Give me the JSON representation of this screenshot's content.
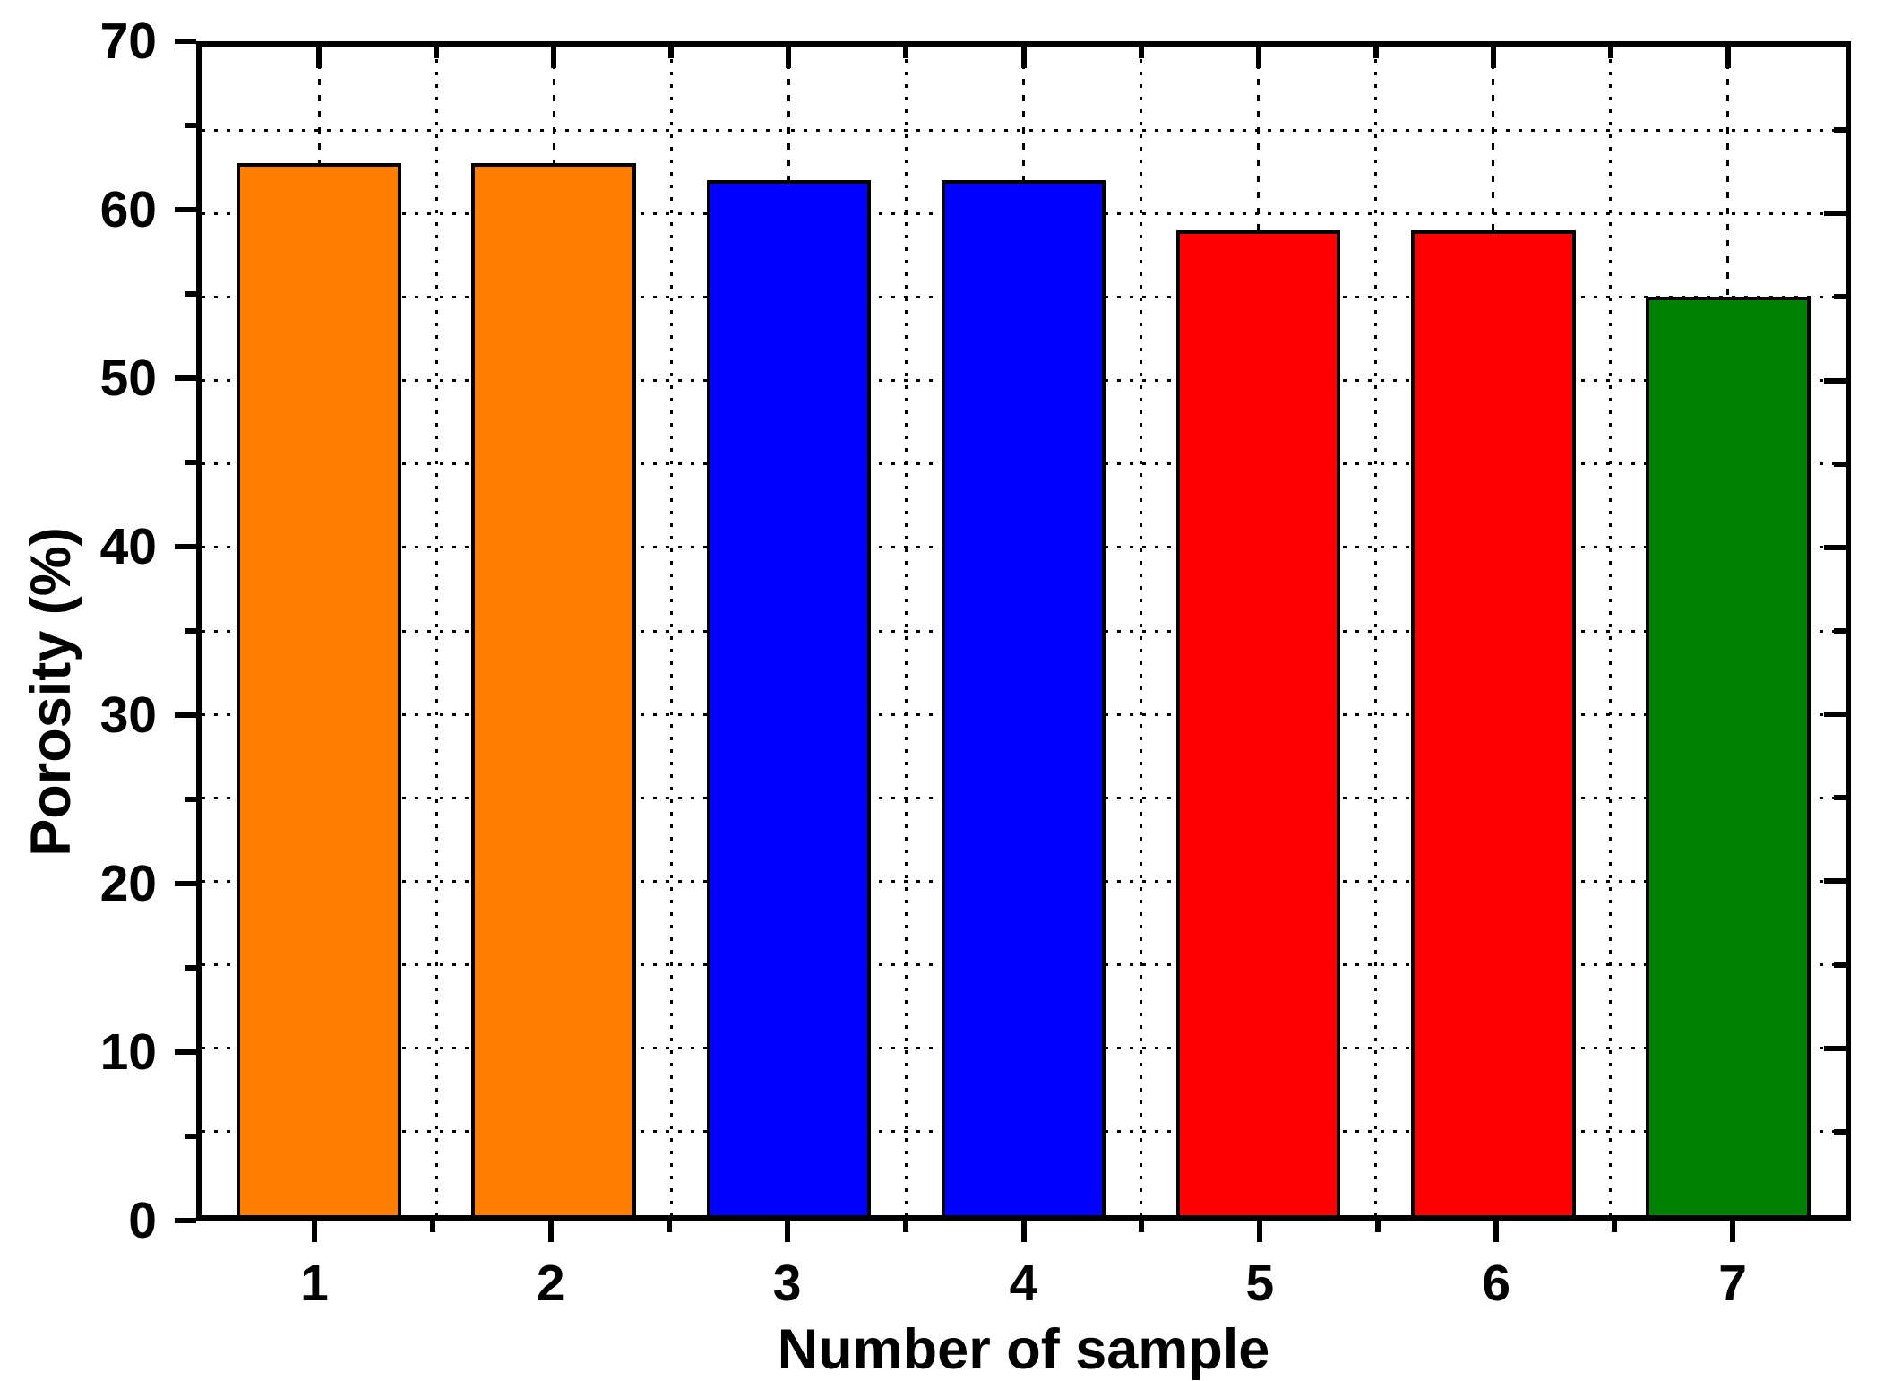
{
  "chart_data": {
    "type": "bar",
    "title": "",
    "xlabel": "Number of sample",
    "ylabel": "Porosity (%)",
    "categories": [
      "1",
      "2",
      "3",
      "4",
      "5",
      "6",
      "7"
    ],
    "values": [
      63,
      63,
      62,
      62,
      59,
      59,
      55
    ],
    "bar_colors": [
      "#FF8000",
      "#FF8000",
      "#0000FF",
      "#0000FF",
      "#FF0000",
      "#FF0000",
      "#008000"
    ],
    "bar_border_color": "#000000",
    "bar_width_fraction": 0.7,
    "xlim": [
      0.5,
      7.5
    ],
    "ylim": [
      0,
      70
    ],
    "y_major_ticks": [
      0,
      10,
      20,
      30,
      40,
      50,
      60,
      70
    ],
    "y_minor_ticks": [
      5,
      15,
      25,
      35,
      45,
      55,
      65
    ],
    "x_major_ticks": [
      1,
      2,
      3,
      4,
      5,
      6,
      7
    ],
    "x_minor_ticks": [
      1.5,
      2.5,
      3.5,
      4.5,
      5.5,
      6.5
    ],
    "grid": "dotted-both-major-and-minor",
    "legend": "none",
    "axis_color": "#000000",
    "background_color": "#FFFFFF"
  }
}
